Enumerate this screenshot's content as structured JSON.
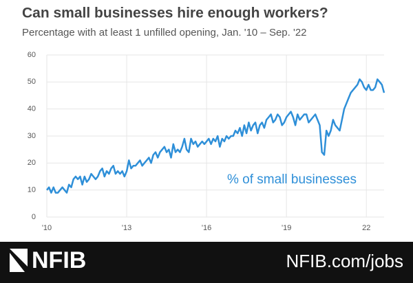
{
  "chart_data": {
    "type": "line",
    "title": "Can small businesses hire enough workers?",
    "subtitle": "Percentage with at least 1 unfilled opening, Jan. '10 –  Sep. '22",
    "annotation": "% of small businesses",
    "color": "#2e8fd8",
    "categories": [
      "'10",
      null,
      null,
      null,
      null,
      null,
      null,
      null,
      null,
      null,
      null,
      null,
      null,
      null,
      null,
      null,
      null,
      null,
      null,
      null,
      null,
      null,
      null,
      null,
      null,
      null,
      null,
      null,
      null,
      null,
      null,
      null,
      null,
      null,
      null,
      null,
      "'13",
      null,
      null,
      null,
      null,
      null,
      null,
      null,
      null,
      null,
      null,
      null,
      null,
      null,
      null,
      null,
      null,
      null,
      null,
      null,
      null,
      null,
      null,
      null,
      null,
      null,
      null,
      null,
      null,
      null,
      null,
      null,
      null,
      null,
      null,
      null,
      "'16",
      null,
      null,
      null,
      null,
      null,
      null,
      null,
      null,
      null,
      null,
      null,
      null,
      null,
      null,
      null,
      null,
      null,
      null,
      null,
      null,
      null,
      null,
      null,
      null,
      null,
      null,
      null,
      null,
      null,
      null,
      null,
      null,
      null,
      null,
      null,
      "'19",
      null,
      null,
      null,
      null,
      null,
      null,
      null,
      null,
      null,
      null,
      null,
      null,
      null,
      null,
      null,
      null,
      null,
      null,
      null,
      null,
      null,
      null,
      null,
      null,
      null,
      null,
      null,
      null,
      null,
      null,
      null,
      null,
      null,
      null,
      null,
      "22",
      null,
      null,
      null,
      null,
      null,
      null,
      null,
      null
    ],
    "values": [
      10,
      11,
      9,
      11,
      9,
      9,
      10,
      11,
      10,
      9,
      12,
      11,
      14,
      15,
      14,
      15,
      12,
      15,
      13,
      14,
      16,
      15,
      14,
      15,
      17,
      18,
      15,
      17,
      16,
      18,
      19,
      16,
      17,
      16,
      17,
      15,
      17,
      21,
      18,
      19,
      19,
      20,
      21,
      19,
      20,
      21,
      22,
      20,
      23,
      24,
      22,
      24,
      25,
      26,
      24,
      25,
      22,
      27,
      24,
      25,
      24,
      26,
      29,
      25,
      24,
      29,
      27,
      28,
      26,
      27,
      28,
      27,
      28,
      29,
      27,
      29,
      28,
      30,
      26,
      29,
      28,
      30,
      29,
      30,
      30,
      32,
      31,
      33,
      30,
      34,
      31,
      35,
      32,
      34,
      35,
      31,
      34,
      35,
      33,
      36,
      37,
      38,
      35,
      36,
      38,
      37,
      34,
      35,
      37,
      38,
      39,
      37,
      34,
      38,
      36,
      37,
      38,
      38,
      35,
      36,
      37,
      38,
      36,
      34,
      24,
      23,
      32,
      30,
      32,
      36,
      34,
      33,
      32,
      36,
      40,
      42,
      44,
      46,
      47,
      48,
      49,
      51,
      50,
      48,
      47,
      49,
      47,
      47,
      48,
      51,
      50,
      49,
      46
    ],
    "ylim": [
      0,
      60
    ],
    "yticks": [
      0,
      10,
      20,
      30,
      40,
      50,
      60
    ],
    "grid": true
  },
  "footer": {
    "logo": "NFIB",
    "url": "NFIB.com/jobs"
  }
}
